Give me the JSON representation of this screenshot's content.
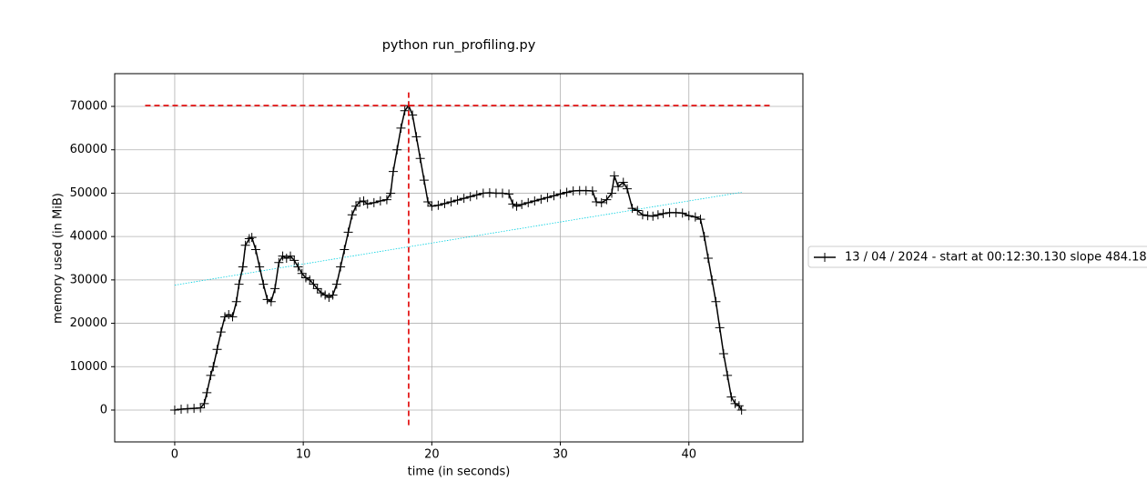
{
  "chart_data": {
    "type": "line",
    "title": "python run_profiling.py",
    "x_label": "time (in seconds)",
    "y_label": "memory used (in MiB)",
    "xlim": [
      -4.67,
      48.87
    ],
    "ylim": [
      -7340,
      77550
    ],
    "xticks": [
      0,
      10,
      20,
      30,
      40
    ],
    "yticks": [
      0,
      10000,
      20000,
      30000,
      40000,
      50000,
      60000,
      70000
    ],
    "grid": true,
    "legend": "outside-right",
    "series": [
      {
        "name": "13 / 04 / 2024 - start at 00:12:30.130 slope 484.1853",
        "color": "#000000",
        "x": [
          0,
          0.5,
          1,
          1.5,
          2,
          2.3,
          2.5,
          2.8,
          3,
          3.3,
          3.6,
          3.9,
          4.2,
          4.5,
          4.8,
          5,
          5.3,
          5.5,
          5.8,
          6,
          6.3,
          6.6,
          6.9,
          7.2,
          7.5,
          7.8,
          8.1,
          8.4,
          8.7,
          9,
          9.3,
          9.6,
          9.9,
          10.2,
          10.5,
          10.8,
          11.1,
          11.4,
          11.7,
          12,
          12.3,
          12.6,
          12.9,
          13.2,
          13.5,
          13.8,
          14.1,
          14.4,
          14.7,
          15,
          15.5,
          16,
          16.5,
          16.8,
          17,
          17.3,
          17.6,
          17.9,
          18.2,
          18.5,
          18.8,
          19.1,
          19.4,
          19.7,
          20,
          20.5,
          21,
          21.5,
          22,
          22.5,
          23,
          23.5,
          24,
          24.5,
          25,
          25.5,
          26,
          26.3,
          26.6,
          27,
          27.5,
          28,
          28.5,
          29,
          29.5,
          30,
          30.5,
          31,
          31.5,
          32,
          32.5,
          32.8,
          33.2,
          33.6,
          34,
          34.2,
          34.5,
          34.9,
          35.2,
          35.6,
          36,
          36.4,
          36.8,
          37.2,
          37.6,
          38,
          38.5,
          39,
          39.5,
          40,
          40.5,
          40.9,
          41.2,
          41.5,
          41.8,
          42.1,
          42.4,
          42.7,
          43,
          43.3,
          43.6,
          43.9,
          44.1
        ],
        "values": [
          0,
          200,
          300,
          400,
          500,
          1500,
          4000,
          8000,
          10000,
          14000,
          18000,
          21500,
          22000,
          21500,
          25000,
          29000,
          33000,
          38000,
          39500,
          39800,
          37000,
          33000,
          29000,
          25500,
          25000,
          28000,
          34000,
          35500,
          35000,
          35500,
          34500,
          33000,
          31500,
          30500,
          30000,
          29000,
          28000,
          27000,
          26500,
          26000,
          26500,
          29000,
          33000,
          37000,
          41000,
          45000,
          47000,
          48000,
          48200,
          47500,
          47800,
          48200,
          48500,
          50000,
          55000,
          60000,
          65000,
          69000,
          70200,
          68000,
          63000,
          58000,
          53000,
          48000,
          47000,
          47200,
          47600,
          48000,
          48400,
          48800,
          49200,
          49600,
          50000,
          50100,
          50000,
          50000,
          49800,
          47500,
          47000,
          47400,
          47800,
          48200,
          48600,
          49000,
          49400,
          49800,
          50200,
          50500,
          50600,
          50600,
          50500,
          48000,
          47800,
          48500,
          50000,
          54000,
          51500,
          52500,
          51000,
          46500,
          46000,
          45000,
          44800,
          44700,
          45000,
          45300,
          45500,
          45500,
          45400,
          44800,
          44500,
          44000,
          40000,
          35000,
          30000,
          25000,
          19000,
          13000,
          8000,
          3000,
          1500,
          1000,
          0
        ]
      }
    ],
    "trend": {
      "x": [
        0,
        44.1
      ],
      "values": [
        28800,
        50200
      ],
      "color": "#00d0e0"
    },
    "max_marker": {
      "x": 18.2,
      "y": 70200,
      "xspan": [
        -2.3,
        46.5
      ],
      "yspan": [
        -3500,
        73500
      ],
      "color": "#e00000"
    }
  }
}
